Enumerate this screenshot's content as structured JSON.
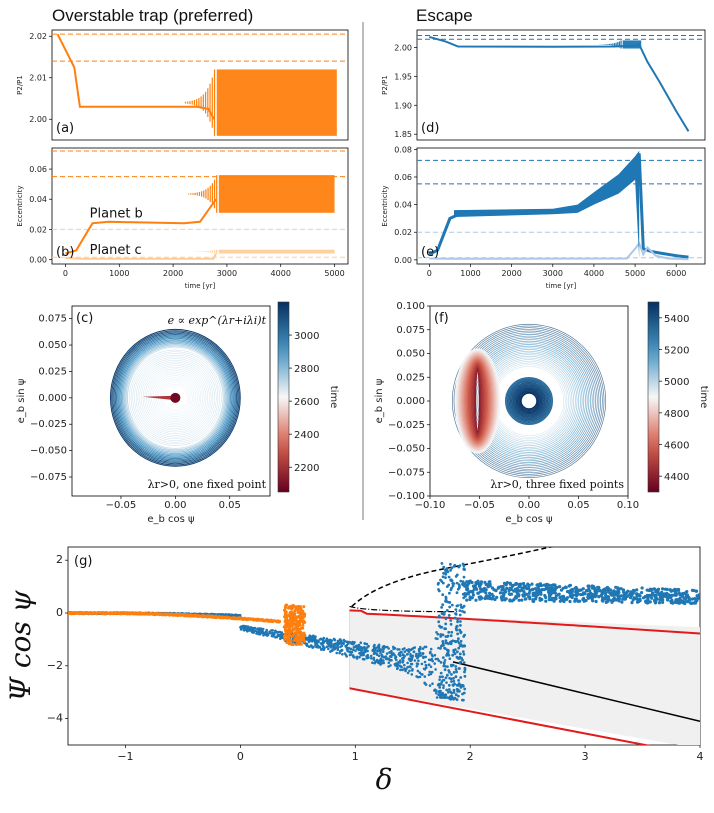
{
  "headers": {
    "left": "Overstable trap (preferred)",
    "right": "Escape"
  },
  "colors": {
    "orange": "#ff7f0e",
    "orange_light": "#ffcc99",
    "blue": "#1f77b4",
    "blue_light": "#aec7e8",
    "red": "#e31a1c",
    "gray_fill": "#f0f0f0"
  },
  "chart_data": [
    {
      "id": "a",
      "type": "line",
      "panel_label": "(a)",
      "ylabel": "P2/P1",
      "xlabel": "",
      "xlim": [
        -100,
        5200
      ],
      "ylim": [
        1.995,
        2.0215
      ],
      "yticks": [
        2.0,
        2.01,
        2.02
      ],
      "xticks": [],
      "hlines": [
        2.014,
        2.0205
      ],
      "series": [
        {
          "x": [
            0,
            300,
            400,
            2500,
            2700,
            2800,
            5000
          ],
          "y": [
            2.0205,
            2.0125,
            2.003,
            2.003,
            2.0025,
            2.0,
            2.003
          ],
          "band_from": 2850,
          "band": [
            1.996,
            2.012
          ]
        }
      ]
    },
    {
      "id": "b",
      "type": "line",
      "panel_label": "(b)",
      "ylabel": "Eccentricity",
      "xlabel": "time [yr]",
      "xlim": [
        -250,
        5250
      ],
      "ylim": [
        -0.003,
        0.074
      ],
      "yticks": [
        0.0,
        0.02,
        0.04,
        0.06
      ],
      "xticks": [
        0,
        1000,
        2000,
        3000,
        4000,
        5000
      ],
      "hlines": [
        0.072,
        0.055,
        0.02,
        0.0015
      ],
      "annotations": [
        "Planet b",
        "Planet c"
      ],
      "series": [
        {
          "name": "Planet b",
          "x": [
            0,
            200,
            500,
            800,
            2200,
            2500,
            2800,
            5000
          ],
          "y": [
            0.004,
            0.006,
            0.024,
            0.025,
            0.024,
            0.025,
            0.04,
            0.045
          ],
          "band_from": 2850,
          "band": [
            0.031,
            0.056
          ]
        },
        {
          "name": "Planet c",
          "x": [
            0,
            100,
            300,
            2750,
            2800,
            5000
          ],
          "y": [
            0.001,
            0.0008,
            0.0005,
            0.0005,
            0.004,
            0.005
          ],
          "band_from": 2850,
          "band": [
            0.004,
            0.0065
          ]
        }
      ]
    },
    {
      "id": "d",
      "type": "line",
      "panel_label": "(d)",
      "ylabel": "P2/P1",
      "xlabel": "",
      "xlim": [
        -300,
        6700
      ],
      "ylim": [
        1.84,
        2.03
      ],
      "yticks": [
        1.85,
        1.9,
        1.95,
        2.0
      ],
      "xticks": [],
      "hlines": [
        2.0205,
        2.014
      ],
      "series": [
        {
          "x": [
            0,
            400,
            700,
            3000,
            4500,
            5000,
            5100,
            5300,
            5600,
            6000,
            6300
          ],
          "y": [
            2.018,
            2.01,
            2.0015,
            2.001,
            2.0015,
            2.003,
            2.005,
            1.975,
            1.94,
            1.89,
            1.855
          ],
          "band_from": 4700,
          "band_to": 5150,
          "band": [
            1.998,
            2.012
          ]
        }
      ]
    },
    {
      "id": "e",
      "type": "line",
      "panel_label": "(e)",
      "ylabel": "Eccentricity",
      "xlabel": "time [yr]",
      "xlim": [
        -300,
        6700
      ],
      "ylim": [
        -0.003,
        0.081
      ],
      "yticks": [
        0.0,
        0.02,
        0.04,
        0.06,
        0.08
      ],
      "xticks": [
        0,
        1000,
        2000,
        3000,
        4000,
        5000,
        6000
      ],
      "hlines": [
        0.072,
        0.055,
        0.02,
        0.0015
      ],
      "series": [
        {
          "name": "b",
          "x": [
            0,
            200,
            500,
            800,
            3000,
            3600,
            4000,
            4600,
            5000,
            5100,
            5200,
            5400,
            5600,
            6000,
            6300
          ],
          "y": [
            0.004,
            0.007,
            0.03,
            0.034,
            0.035,
            0.037,
            0.045,
            0.055,
            0.068,
            0.077,
            0.008,
            0.006,
            0.005,
            0.003,
            0.002
          ]
        },
        {
          "name": "c",
          "x": [
            0,
            500,
            4800,
            5000,
            5100,
            5200,
            5300,
            5500,
            5800,
            6300
          ],
          "y": [
            0.001,
            0.0008,
            0.001,
            0.008,
            0.012,
            0.004,
            0.009,
            0.003,
            0.001,
            0.0005
          ]
        }
      ]
    },
    {
      "id": "c",
      "type": "scatter",
      "panel_label": "(c)",
      "xlabel": "e_b cos ψ",
      "ylabel": "e_b sin ψ",
      "xlim": [
        -0.095,
        0.087
      ],
      "ylim": [
        -0.093,
        0.087
      ],
      "xticks": [
        -0.05,
        0.0,
        0.05
      ],
      "yticks": [
        -0.075,
        -0.05,
        -0.025,
        0.0,
        0.025,
        0.05,
        0.075
      ],
      "annotation_top": "e ∝ exp^(λr+iλi)t",
      "annotation_bottom": "λr>0, one fixed point",
      "colorbar_label": "time",
      "colorbar_ticks": [
        2200,
        2400,
        2600,
        2800,
        3000
      ],
      "colorbar_range": [
        2050,
        3200
      ]
    },
    {
      "id": "f",
      "type": "scatter",
      "panel_label": "(f)",
      "xlabel": "e_b cos ψ",
      "ylabel": "e_b sin ψ",
      "xlim": [
        -0.1,
        0.1
      ],
      "ylim": [
        -0.1,
        0.1
      ],
      "xticks": [
        -0.1,
        -0.05,
        0.0,
        0.05,
        0.1
      ],
      "yticks": [
        -0.1,
        -0.075,
        -0.05,
        -0.025,
        0.0,
        0.025,
        0.05,
        0.075,
        0.1
      ],
      "annotation_bottom": "λr>0, three fixed points",
      "colorbar_label": "time",
      "colorbar_ticks": [
        4400,
        4600,
        4800,
        5000,
        5200,
        5400
      ],
      "colorbar_range": [
        4300,
        5500
      ]
    },
    {
      "id": "g",
      "type": "scatter",
      "panel_label": "(g)",
      "xlabel": "δ",
      "ylabel": "Ψ cos ψ",
      "xlim": [
        -1.5,
        4
      ],
      "ylim": [
        -5,
        2.5
      ],
      "xticks": [
        -1,
        0,
        1,
        2,
        3,
        4
      ],
      "yticks": [
        -4,
        -2,
        0,
        2
      ],
      "series": [
        {
          "name": "blue trajectory",
          "x": [
            -1.5,
            -1,
            0,
            0.5,
            1,
            1.5,
            1.75,
            1.85
          ],
          "y": [
            -0.05,
            -0.1,
            -0.5,
            -0.9,
            -1.2,
            -1.6,
            -2.4,
            -2.5
          ]
        },
        {
          "name": "orange trajectory",
          "x": [
            -1.5,
            -1,
            -0.5,
            0,
            0.45
          ],
          "y": [
            -0.05,
            -0.15,
            -0.35,
            -0.6,
            -0.75
          ]
        },
        {
          "name": "blue escaped",
          "x": [
            1.95,
            2.5,
            3,
            3.5,
            4
          ],
          "y": [
            0.8,
            0.65,
            0.55,
            0.45,
            0.35
          ]
        }
      ]
    }
  ]
}
